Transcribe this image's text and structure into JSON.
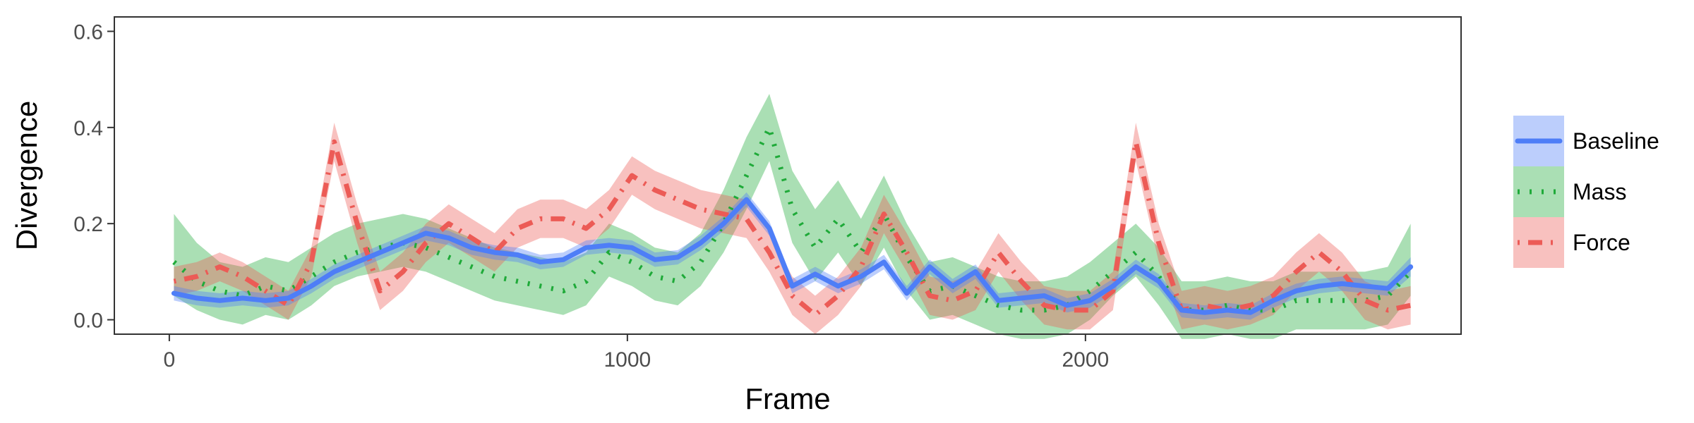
{
  "chart_data": {
    "type": "line",
    "xlabel": "Frame",
    "ylabel": "Divergence",
    "xlim": [
      -120,
      2820
    ],
    "ylim": [
      -0.03,
      0.63
    ],
    "x_ticks": [
      0,
      1000,
      2000
    ],
    "y_ticks": [
      0.0,
      0.2,
      0.4,
      0.6
    ],
    "x_tick_labels": [
      "0",
      "1000",
      "2000"
    ],
    "y_tick_labels": [
      "0.0",
      "0.2",
      "0.4",
      "0.6"
    ],
    "grid": false,
    "legend_position": "right",
    "x": [
      10,
      60,
      110,
      160,
      210,
      260,
      310,
      360,
      410,
      460,
      510,
      560,
      610,
      660,
      710,
      760,
      810,
      860,
      910,
      960,
      1010,
      1060,
      1110,
      1160,
      1210,
      1260,
      1310,
      1360,
      1410,
      1460,
      1510,
      1560,
      1610,
      1660,
      1710,
      1760,
      1810,
      1860,
      1910,
      1960,
      2010,
      2060,
      2110,
      2160,
      2210,
      2260,
      2310,
      2360,
      2410,
      2460,
      2510,
      2560,
      2610,
      2660,
      2710
    ],
    "series": [
      {
        "name": "Baseline",
        "color": "#4e7ef7",
        "dash": "solid",
        "values": [
          0.055,
          0.045,
          0.04,
          0.045,
          0.04,
          0.045,
          0.07,
          0.1,
          0.12,
          0.14,
          0.16,
          0.18,
          0.17,
          0.15,
          0.14,
          0.135,
          0.12,
          0.125,
          0.15,
          0.155,
          0.15,
          0.125,
          0.13,
          0.16,
          0.2,
          0.25,
          0.19,
          0.07,
          0.095,
          0.07,
          0.09,
          0.12,
          0.055,
          0.11,
          0.07,
          0.1,
          0.04,
          0.045,
          0.05,
          0.03,
          0.04,
          0.07,
          0.11,
          0.08,
          0.02,
          0.015,
          0.02,
          0.015,
          0.04,
          0.06,
          0.07,
          0.075,
          0.07,
          0.065,
          0.11
        ],
        "lower": [
          0.04,
          0.03,
          0.025,
          0.03,
          0.025,
          0.03,
          0.055,
          0.085,
          0.105,
          0.125,
          0.145,
          0.165,
          0.155,
          0.135,
          0.125,
          0.12,
          0.105,
          0.11,
          0.135,
          0.14,
          0.135,
          0.11,
          0.115,
          0.145,
          0.185,
          0.235,
          0.175,
          0.055,
          0.08,
          0.055,
          0.075,
          0.105,
          0.04,
          0.095,
          0.055,
          0.085,
          0.025,
          0.03,
          0.035,
          0.015,
          0.025,
          0.055,
          0.095,
          0.065,
          0.005,
          0.0,
          0.005,
          0.0,
          0.025,
          0.045,
          0.055,
          0.06,
          0.055,
          0.05,
          0.09
        ],
        "upper": [
          0.07,
          0.06,
          0.055,
          0.06,
          0.055,
          0.06,
          0.085,
          0.115,
          0.135,
          0.155,
          0.175,
          0.195,
          0.185,
          0.165,
          0.155,
          0.15,
          0.135,
          0.14,
          0.165,
          0.17,
          0.165,
          0.14,
          0.145,
          0.175,
          0.215,
          0.265,
          0.205,
          0.085,
          0.11,
          0.085,
          0.105,
          0.135,
          0.07,
          0.125,
          0.085,
          0.115,
          0.055,
          0.06,
          0.065,
          0.045,
          0.055,
          0.085,
          0.125,
          0.095,
          0.035,
          0.03,
          0.035,
          0.03,
          0.055,
          0.075,
          0.085,
          0.09,
          0.085,
          0.08,
          0.13
        ]
      },
      {
        "name": "Mass",
        "color": "#1faa39",
        "dash": "dotted",
        "values": [
          0.12,
          0.08,
          0.06,
          0.05,
          0.07,
          0.06,
          0.09,
          0.12,
          0.14,
          0.15,
          0.16,
          0.15,
          0.13,
          0.11,
          0.09,
          0.08,
          0.07,
          0.06,
          0.08,
          0.14,
          0.12,
          0.09,
          0.08,
          0.12,
          0.2,
          0.3,
          0.4,
          0.23,
          0.15,
          0.21,
          0.14,
          0.22,
          0.13,
          0.06,
          0.07,
          0.05,
          0.03,
          0.02,
          0.02,
          0.03,
          0.06,
          0.1,
          0.14,
          0.09,
          0.02,
          0.02,
          0.03,
          0.02,
          0.02,
          0.04,
          0.04,
          0.04,
          0.04,
          0.05,
          0.1
        ],
        "lower": [
          0.05,
          0.02,
          0.0,
          -0.01,
          0.01,
          0.0,
          0.03,
          0.07,
          0.09,
          0.1,
          0.11,
          0.1,
          0.08,
          0.06,
          0.04,
          0.03,
          0.02,
          0.01,
          0.03,
          0.09,
          0.07,
          0.04,
          0.03,
          0.07,
          0.14,
          0.23,
          0.33,
          0.16,
          0.08,
          0.14,
          0.07,
          0.15,
          0.06,
          0.0,
          0.01,
          -0.01,
          -0.03,
          -0.04,
          -0.04,
          -0.03,
          0.0,
          0.05,
          0.09,
          0.03,
          -0.04,
          -0.04,
          -0.03,
          -0.04,
          -0.04,
          -0.02,
          -0.02,
          -0.02,
          -0.02,
          -0.01,
          0.05
        ],
        "upper": [
          0.22,
          0.16,
          0.12,
          0.11,
          0.13,
          0.12,
          0.15,
          0.18,
          0.2,
          0.21,
          0.22,
          0.21,
          0.19,
          0.17,
          0.15,
          0.14,
          0.13,
          0.12,
          0.14,
          0.2,
          0.18,
          0.15,
          0.14,
          0.18,
          0.27,
          0.38,
          0.47,
          0.31,
          0.23,
          0.29,
          0.21,
          0.3,
          0.2,
          0.12,
          0.13,
          0.11,
          0.09,
          0.08,
          0.08,
          0.09,
          0.12,
          0.16,
          0.2,
          0.15,
          0.08,
          0.08,
          0.09,
          0.08,
          0.08,
          0.1,
          0.1,
          0.1,
          0.1,
          0.11,
          0.2
        ]
      },
      {
        "name": "Force",
        "color": "#ec5b56",
        "dash": "dotdash",
        "values": [
          0.08,
          0.09,
          0.11,
          0.09,
          0.06,
          0.03,
          0.12,
          0.37,
          0.2,
          0.06,
          0.1,
          0.16,
          0.2,
          0.17,
          0.14,
          0.19,
          0.21,
          0.21,
          0.19,
          0.23,
          0.3,
          0.27,
          0.25,
          0.23,
          0.22,
          0.21,
          0.14,
          0.05,
          0.01,
          0.05,
          0.11,
          0.22,
          0.14,
          0.05,
          0.04,
          0.06,
          0.14,
          0.08,
          0.03,
          0.02,
          0.02,
          0.06,
          0.37,
          0.16,
          0.02,
          0.03,
          0.02,
          0.03,
          0.05,
          0.1,
          0.14,
          0.1,
          0.04,
          0.02,
          0.03
        ],
        "lower": [
          0.05,
          0.06,
          0.08,
          0.06,
          0.03,
          0.0,
          0.09,
          0.33,
          0.16,
          0.02,
          0.06,
          0.12,
          0.16,
          0.13,
          0.1,
          0.15,
          0.17,
          0.17,
          0.15,
          0.19,
          0.26,
          0.23,
          0.21,
          0.19,
          0.18,
          0.17,
          0.1,
          0.01,
          -0.03,
          0.01,
          0.07,
          0.18,
          0.1,
          0.01,
          0.0,
          0.02,
          0.1,
          0.04,
          -0.01,
          -0.02,
          -0.02,
          0.02,
          0.33,
          0.12,
          -0.02,
          -0.01,
          -0.02,
          -0.01,
          0.01,
          0.06,
          0.1,
          0.06,
          0.0,
          -0.02,
          -0.01
        ],
        "upper": [
          0.11,
          0.12,
          0.14,
          0.12,
          0.09,
          0.06,
          0.15,
          0.41,
          0.24,
          0.1,
          0.14,
          0.2,
          0.24,
          0.21,
          0.18,
          0.23,
          0.25,
          0.25,
          0.23,
          0.27,
          0.34,
          0.31,
          0.29,
          0.27,
          0.26,
          0.25,
          0.18,
          0.09,
          0.05,
          0.09,
          0.15,
          0.26,
          0.18,
          0.09,
          0.08,
          0.1,
          0.18,
          0.12,
          0.07,
          0.06,
          0.06,
          0.1,
          0.41,
          0.2,
          0.06,
          0.07,
          0.06,
          0.07,
          0.09,
          0.14,
          0.18,
          0.14,
          0.08,
          0.06,
          0.07
        ]
      }
    ]
  }
}
